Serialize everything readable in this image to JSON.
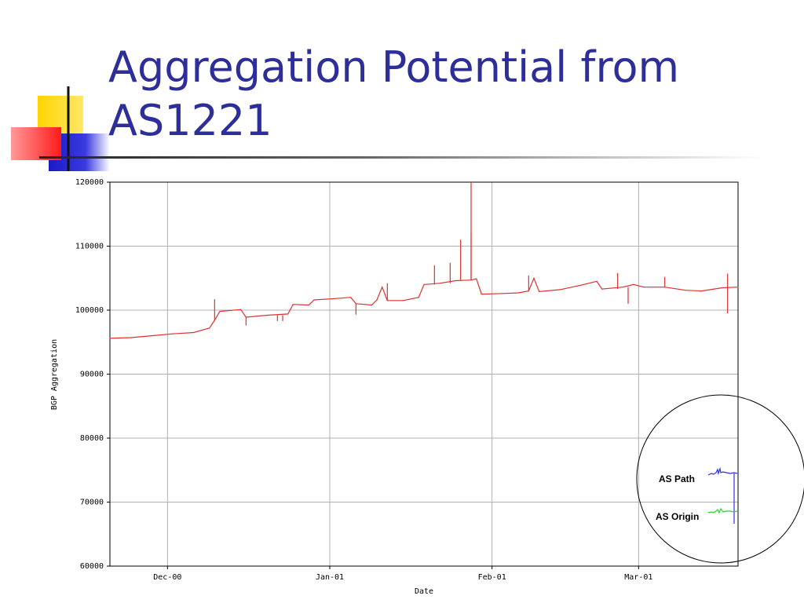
{
  "slide": {
    "title_line1": "Aggregation Potential from",
    "title_line2": "AS1221"
  },
  "colors": {
    "title": "#2e2e9a",
    "series_main": "#e03030",
    "series_as_path": "#3030e0",
    "series_as_origin": "#30d030",
    "grid": "#b0b0b0",
    "deco_yellow": "#ffd400",
    "deco_blue": "#2a2ad0",
    "deco_red": "#ff3030"
  },
  "chart_data": {
    "type": "line",
    "title": "",
    "xlabel": "Date",
    "ylabel": "BGP Aggregation",
    "ylim": [
      60000,
      120000
    ],
    "yticks": [
      60000,
      70000,
      80000,
      90000,
      100000,
      110000,
      120000
    ],
    "xlim": [
      "2000-11-20",
      "2001-03-20"
    ],
    "xticks": [
      {
        "date": "2000-12-01",
        "label": "Dec-00"
      },
      {
        "date": "2001-01-01",
        "label": "Jan-01"
      },
      {
        "date": "2001-02-01",
        "label": "Feb-01"
      },
      {
        "date": "2001-03-01",
        "label": "Mar-01"
      }
    ],
    "grid": true,
    "series": [
      {
        "name": "",
        "color": "#e03030",
        "points": [
          [
            "2000-11-20",
            95600
          ],
          [
            "2000-11-24",
            95700
          ],
          [
            "2000-11-28",
            96000
          ],
          [
            "2000-12-02",
            96300
          ],
          [
            "2000-12-06",
            96500
          ],
          [
            "2000-12-09",
            97200
          ],
          [
            "2000-12-10",
            98400
          ],
          [
            "2000-12-11",
            99800
          ],
          [
            "2000-12-15",
            100100
          ],
          [
            "2000-12-16",
            98900
          ],
          [
            "2000-12-20",
            99200
          ],
          [
            "2000-12-24",
            99400
          ],
          [
            "2000-12-25",
            100900
          ],
          [
            "2000-12-28",
            100800
          ],
          [
            "2000-12-29",
            101600
          ],
          [
            "2001-01-02",
            101800
          ],
          [
            "2001-01-05",
            102000
          ],
          [
            "2001-01-06",
            101000
          ],
          [
            "2001-01-09",
            100800
          ],
          [
            "2001-01-10",
            101600
          ],
          [
            "2001-01-11",
            103600
          ],
          [
            "2001-01-12",
            101500
          ],
          [
            "2001-01-15",
            101500
          ],
          [
            "2001-01-18",
            102000
          ],
          [
            "2001-01-19",
            104000
          ],
          [
            "2001-01-22",
            104200
          ],
          [
            "2001-01-25",
            104600
          ],
          [
            "2001-01-28",
            104700
          ],
          [
            "2001-01-29",
            104900
          ],
          [
            "2001-01-30",
            102500
          ],
          [
            "2001-02-03",
            102600
          ],
          [
            "2001-02-06",
            102700
          ],
          [
            "2001-02-08",
            103000
          ],
          [
            "2001-02-09",
            105000
          ],
          [
            "2001-02-10",
            102900
          ],
          [
            "2001-02-14",
            103200
          ],
          [
            "2001-02-18",
            103900
          ],
          [
            "2001-02-21",
            104500
          ],
          [
            "2001-02-22",
            103300
          ],
          [
            "2001-02-26",
            103600
          ],
          [
            "2001-02-28",
            104000
          ],
          [
            "2001-03-02",
            103600
          ],
          [
            "2001-03-06",
            103600
          ],
          [
            "2001-03-10",
            103100
          ],
          [
            "2001-03-13",
            103000
          ],
          [
            "2001-03-17",
            103500
          ],
          [
            "2001-03-20",
            103600
          ]
        ],
        "spikes": [
          {
            "date": "2000-12-10",
            "value": 101700
          },
          {
            "date": "2000-12-16",
            "value": 97600
          },
          {
            "date": "2000-12-22",
            "value": 98300
          },
          {
            "date": "2000-12-23",
            "value": 98300
          },
          {
            "date": "2001-01-06",
            "value": 99300
          },
          {
            "date": "2001-01-12",
            "value": 104200
          },
          {
            "date": "2001-01-21",
            "value": 107000
          },
          {
            "date": "2001-01-24",
            "value": 107400
          },
          {
            "date": "2001-01-26",
            "value": 111000
          },
          {
            "date": "2001-01-28",
            "value": 120000
          },
          {
            "date": "2001-01-28",
            "value": 112000
          },
          {
            "date": "2001-02-08",
            "value": 105400
          },
          {
            "date": "2001-02-25",
            "value": 105800
          },
          {
            "date": "2001-02-27",
            "value": 101000
          },
          {
            "date": "2001-03-06",
            "value": 105200
          },
          {
            "date": "2001-03-18",
            "value": 105700
          },
          {
            "date": "2001-03-18",
            "value": 99500
          }
        ]
      }
    ],
    "inset_legend": {
      "as_path_label": "AS Path",
      "as_origin_label": "AS Origin"
    }
  }
}
